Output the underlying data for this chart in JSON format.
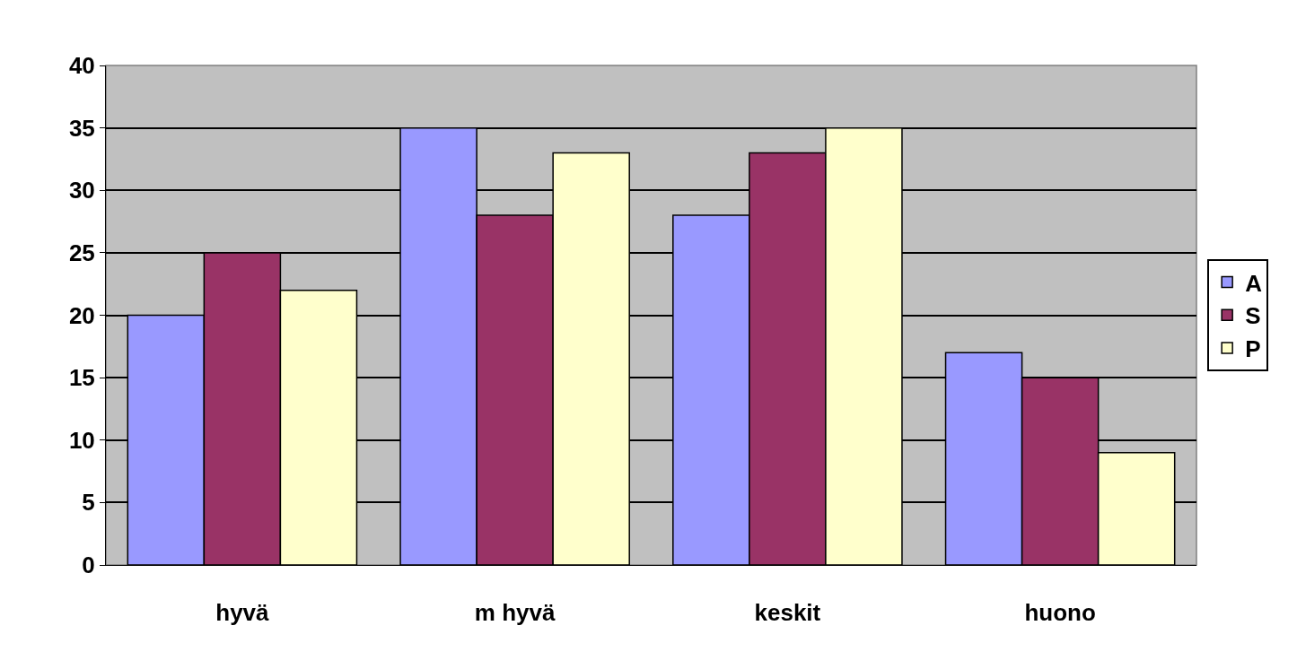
{
  "chart_data": {
    "type": "bar",
    "categories": [
      "hyvä",
      "m hyvä",
      "keskit",
      "huono"
    ],
    "series": [
      {
        "name": "A",
        "color": "#9999ff",
        "values": [
          20,
          35,
          28,
          17
        ]
      },
      {
        "name": "S",
        "color": "#993366",
        "values": [
          25,
          28,
          33,
          15
        ]
      },
      {
        "name": "P",
        "color": "#ffffcc",
        "values": [
          22,
          33,
          35,
          9
        ]
      }
    ],
    "ylim": [
      0,
      40
    ],
    "yticks": [
      0,
      5,
      10,
      15,
      20,
      25,
      30,
      35,
      40
    ],
    "grid": "y",
    "legend": "right"
  }
}
